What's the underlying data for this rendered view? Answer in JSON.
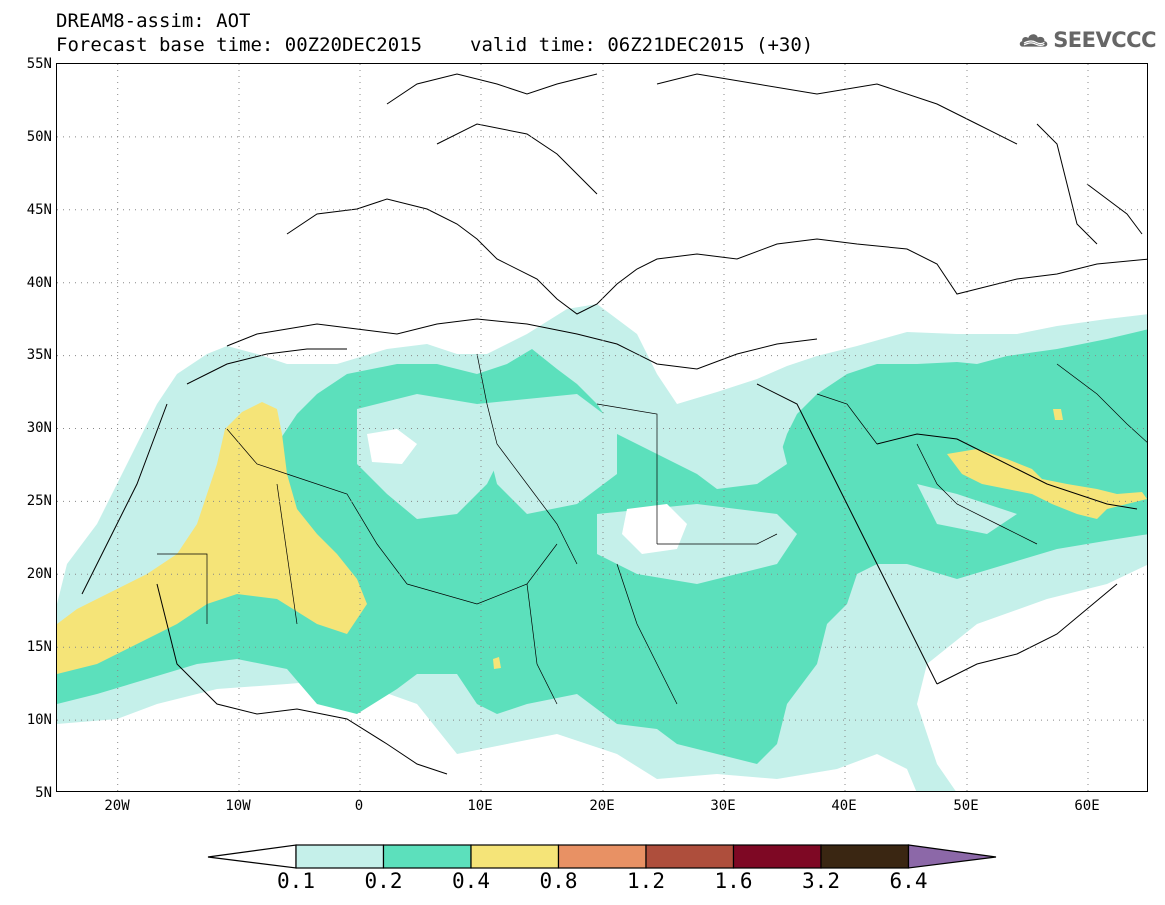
{
  "header": {
    "title_line1": "DREAM8-assim: AOT",
    "base_time": "Forecast base time: 00Z20DEC2015",
    "valid_time": "valid time: 06Z21DEC2015 (+30)"
  },
  "logo": {
    "text": "SEEVCCC",
    "icon": "cloud-icon"
  },
  "map": {
    "lat_ticks": [
      "55N",
      "50N",
      "45N",
      "40N",
      "35N",
      "30N",
      "25N",
      "20N",
      "15N",
      "10N",
      "5N"
    ],
    "lon_ticks": [
      "20W",
      "10W",
      "0",
      "10E",
      "20E",
      "30E",
      "40E",
      "50E",
      "60E"
    ],
    "lat_range": [
      5,
      55
    ],
    "lon_range": [
      -25,
      65
    ],
    "grid": "dotted"
  },
  "legend": {
    "labels": [
      "0.1",
      "0.2",
      "0.4",
      "0.8",
      "1.2",
      "1.6",
      "3.2",
      "6.4"
    ],
    "colors": [
      "#ffffff",
      "#c5f0ea",
      "#5ce0bc",
      "#f5e478",
      "#e89164",
      "#ae4e3c",
      "#7e0824",
      "#3a2612",
      "#8c68a8"
    ]
  }
}
